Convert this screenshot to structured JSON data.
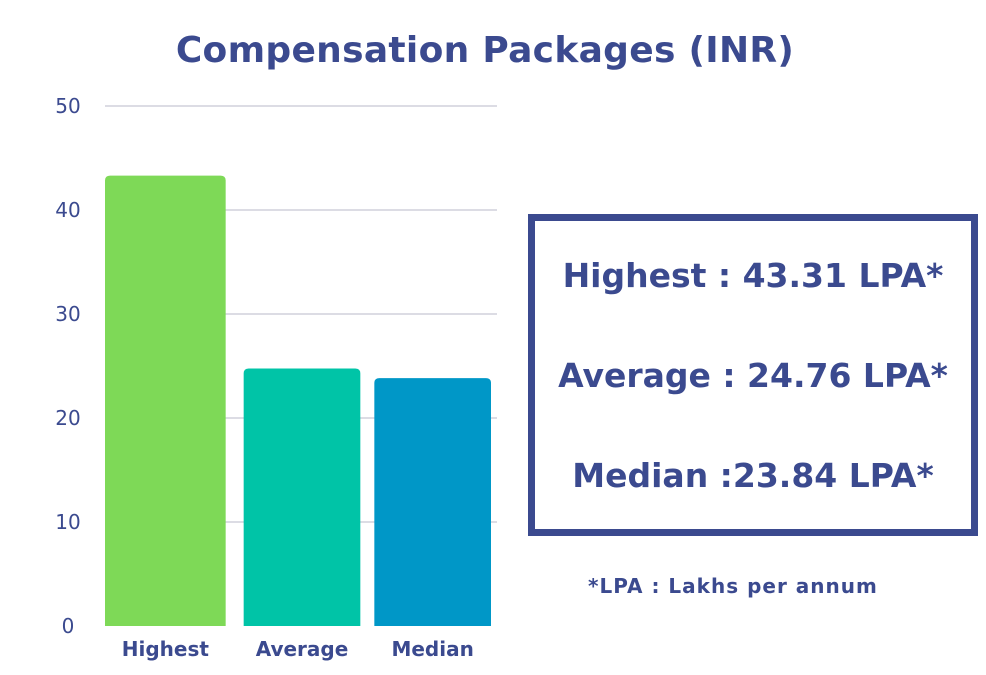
{
  "title": "Compensation Packages (INR)",
  "chart_data": {
    "type": "bar",
    "categories": [
      "Highest",
      "Average",
      "Median"
    ],
    "values": [
      43.31,
      24.76,
      23.84
    ],
    "ylim": [
      0,
      50
    ],
    "yticks": [
      "0",
      "10",
      "20",
      "30",
      "40",
      "50"
    ],
    "grid": true,
    "colors": [
      "#7ed957",
      "#00c4a7",
      "#0097c7"
    ],
    "text_color": "#3b4a8f",
    "grid_color": "#d0d0dc"
  },
  "summary": {
    "highest": "Highest : 43.31 LPA*",
    "average": "Average : 24.76 LPA*",
    "median": "Median :23.84 LPA*"
  },
  "footnote": "*LPA : Lakhs per annum"
}
